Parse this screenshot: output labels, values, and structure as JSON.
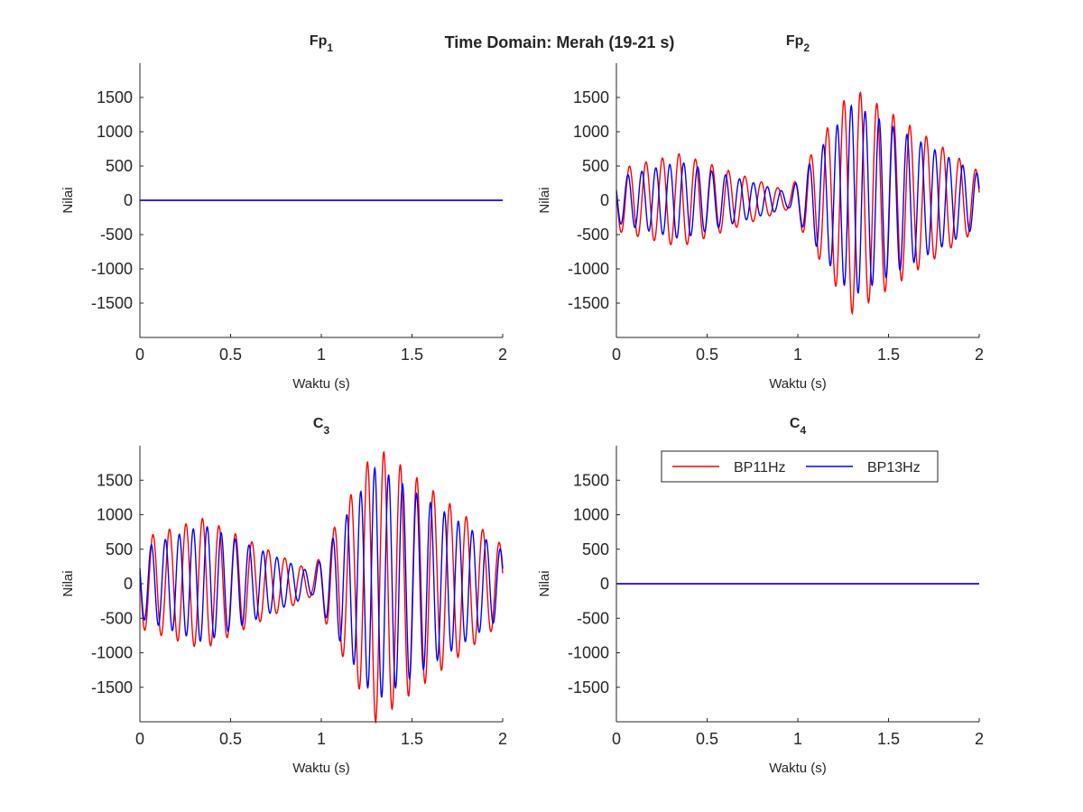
{
  "figure": {
    "title": "Time Domain: Merah (19-21 s)"
  },
  "colors": {
    "BP11Hz": "#ff0000",
    "BP13Hz": "#0000ff",
    "axis": "#262626"
  },
  "legend": {
    "placement": "top",
    "entries": [
      "BP11Hz",
      "BP13Hz"
    ]
  },
  "chart_data": [
    {
      "type": "line",
      "title": "Fp1",
      "title_base": "Fp",
      "title_sub": "1",
      "xlabel": "Waktu (s)",
      "ylabel": "Nilai",
      "xlim": [
        0,
        2
      ],
      "ylim": [
        -2000,
        2000
      ],
      "xticks": [
        0,
        0.5,
        1,
        1.5,
        2
      ],
      "xtick_labels": [
        "0",
        "0.5",
        "1",
        "1.5",
        "2"
      ],
      "yticks": [
        1500,
        1000,
        500,
        0,
        -500,
        -1000,
        -1500
      ],
      "ytick_labels": [
        "1500",
        "1000",
        "500",
        "0",
        "-500",
        "-1000",
        "-1500"
      ],
      "series": [
        {
          "name": "BP11Hz",
          "freq": 11,
          "segments": [
            {
              "t0": 0,
              "t1": 2,
              "a0": 0,
              "a1": 0
            }
          ],
          "phase": 0
        },
        {
          "name": "BP13Hz",
          "freq": 13,
          "segments": [
            {
              "t0": 0,
              "t1": 2,
              "a0": 0,
              "a1": 0
            }
          ],
          "phase": 0
        }
      ]
    },
    {
      "type": "line",
      "title": "Fp2",
      "title_base": "Fp",
      "title_sub": "2",
      "xlabel": "Waktu (s)",
      "ylabel": "Nilai",
      "xlim": [
        0,
        2
      ],
      "ylim": [
        -2000,
        2000
      ],
      "xticks": [
        0,
        0.5,
        1,
        1.5,
        2
      ],
      "xtick_labels": [
        "0",
        "0.5",
        "1",
        "1.5",
        "2"
      ],
      "yticks": [
        1500,
        1000,
        500,
        0,
        -500,
        -1000,
        -1500
      ],
      "ytick_labels": [
        "1500",
        "1000",
        "500",
        "0",
        "-500",
        "-1000",
        "-1500"
      ],
      "series": [
        {
          "name": "BP11Hz",
          "freq": 11,
          "phase": 1.3,
          "segments": [
            {
              "t0": 0,
              "t1": 0.35,
              "a0": 450,
              "a1": 680
            },
            {
              "t0": 0.35,
              "t1": 0.95,
              "a0": 680,
              "a1": 130
            },
            {
              "t0": 0.95,
              "t1": 1.3,
              "a0": 130,
              "a1": 1650
            },
            {
              "t0": 1.3,
              "t1": 2,
              "a0": 1650,
              "a1": 420
            }
          ]
        },
        {
          "name": "BP13Hz",
          "freq": 13,
          "phase": 1.1,
          "segments": [
            {
              "t0": 0,
              "t1": 0.35,
              "a0": 330,
              "a1": 560
            },
            {
              "t0": 0.35,
              "t1": 0.95,
              "a0": 560,
              "a1": 110
            },
            {
              "t0": 0.95,
              "t1": 1.3,
              "a0": 110,
              "a1": 1400
            },
            {
              "t0": 1.3,
              "t1": 2,
              "a0": 1400,
              "a1": 380
            }
          ]
        }
      ]
    },
    {
      "type": "line",
      "title": "C3",
      "title_base": "C",
      "title_sub": "3",
      "xlabel": "Waktu (s)",
      "ylabel": "Nilai",
      "xlim": [
        0,
        2
      ],
      "ylim": [
        -2000,
        2000
      ],
      "xticks": [
        0,
        0.5,
        1,
        1.5,
        2
      ],
      "xtick_labels": [
        "0",
        "0.5",
        "1",
        "1.5",
        "2"
      ],
      "yticks": [
        1500,
        1000,
        500,
        0,
        -500,
        -1000,
        -1500
      ],
      "ytick_labels": [
        "1500",
        "1000",
        "500",
        "0",
        "-500",
        "-1000",
        "-1500"
      ],
      "series": [
        {
          "name": "BP11Hz",
          "freq": 11,
          "phase": 1.3,
          "segments": [
            {
              "t0": 0,
              "t1": 0.35,
              "a0": 650,
              "a1": 950
            },
            {
              "t0": 0.35,
              "t1": 0.95,
              "a0": 950,
              "a1": 180
            },
            {
              "t0": 0.95,
              "t1": 1.3,
              "a0": 180,
              "a1": 2000
            },
            {
              "t0": 1.3,
              "t1": 2,
              "a0": 2000,
              "a1": 560
            }
          ]
        },
        {
          "name": "BP13Hz",
          "freq": 13,
          "phase": 1.1,
          "segments": [
            {
              "t0": 0,
              "t1": 0.35,
              "a0": 500,
              "a1": 850
            },
            {
              "t0": 0.35,
              "t1": 0.95,
              "a0": 850,
              "a1": 160
            },
            {
              "t0": 0.95,
              "t1": 1.3,
              "a0": 160,
              "a1": 1700
            },
            {
              "t0": 1.3,
              "t1": 2,
              "a0": 1700,
              "a1": 480
            }
          ]
        }
      ]
    },
    {
      "type": "line",
      "title": "C4",
      "title_base": "C",
      "title_sub": "4",
      "xlabel": "Waktu (s)",
      "ylabel": "Nilai",
      "xlim": [
        0,
        2
      ],
      "ylim": [
        -2000,
        2000
      ],
      "xticks": [
        0,
        0.5,
        1,
        1.5,
        2
      ],
      "xtick_labels": [
        "0",
        "0.5",
        "1",
        "1.5",
        "2"
      ],
      "yticks": [
        1500,
        1000,
        500,
        0,
        -500,
        -1000,
        -1500
      ],
      "ytick_labels": [
        "1500",
        "1000",
        "500",
        "0",
        "-500",
        "-1000",
        "-1500"
      ],
      "series": [
        {
          "name": "BP11Hz",
          "freq": 11,
          "segments": [
            {
              "t0": 0,
              "t1": 2,
              "a0": 0,
              "a1": 0
            }
          ],
          "phase": 0
        },
        {
          "name": "BP13Hz",
          "freq": 13,
          "segments": [
            {
              "t0": 0,
              "t1": 2,
              "a0": 0,
              "a1": 0
            }
          ],
          "phase": 0
        }
      ]
    }
  ]
}
